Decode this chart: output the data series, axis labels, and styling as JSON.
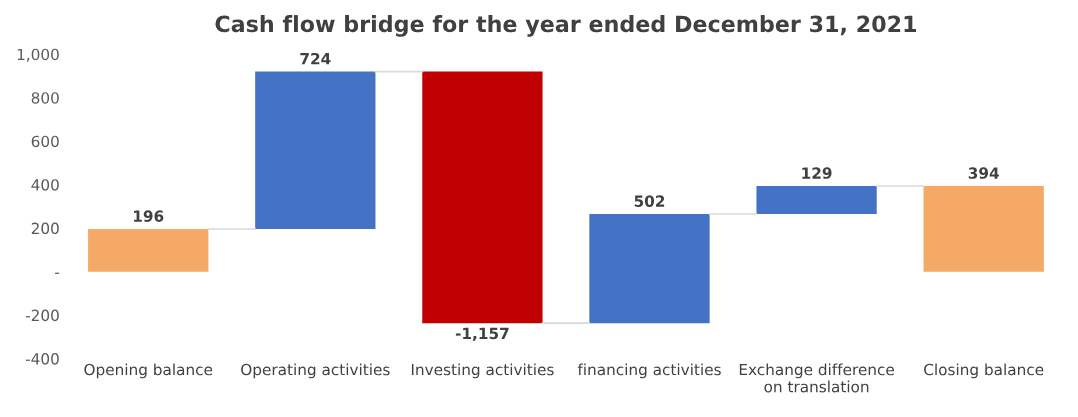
{
  "chart_data": {
    "type": "bar",
    "title": "Cash flow bridge for the year ended December 31, 2021",
    "categories": [
      "Opening balance",
      "Operating activities",
      "Investing activities",
      "financing activities",
      "Exchange difference\non translation",
      "Closing balance"
    ],
    "values": [
      196,
      724,
      -1157,
      502,
      129,
      394
    ],
    "base": [
      0,
      196,
      920,
      -237,
      265,
      0
    ],
    "colors": [
      "#f4a966",
      "#4472c4",
      "#c00000",
      "#4472c4",
      "#4472c4",
      "#f4a966"
    ],
    "value_labels": [
      "196",
      "724",
      "-1,157",
      "502",
      "129",
      "394"
    ],
    "ylim": [
      -400,
      1000
    ],
    "yticks": [
      -400,
      -200,
      {
        "value": 0,
        "label": "-"
      },
      200,
      400,
      600,
      800,
      {
        "value": 1000,
        "label": "1,000"
      }
    ],
    "grid": false,
    "legend": false
  }
}
